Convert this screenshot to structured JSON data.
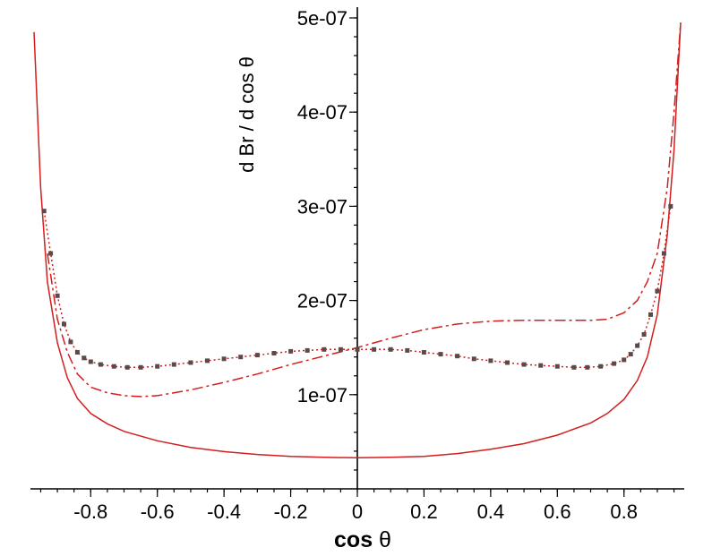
{
  "chart_data": {
    "type": "line",
    "xlabel": "cos θ",
    "xlabel_parts": {
      "bold": "cos",
      "rest": " θ"
    },
    "ylabel": "d Br / d cos θ",
    "xlim": [
      -0.97,
      0.97
    ],
    "ylim": [
      0.0,
      5e-07
    ],
    "x_ticks": [
      -0.8,
      -0.6,
      -0.4,
      -0.2,
      0,
      0.2,
      0.4,
      0.6,
      0.8
    ],
    "x_tick_labels": [
      "-0.8",
      "-0.6",
      "-0.4",
      "-0.2",
      "0",
      "0.2",
      "0.4",
      "0.6",
      "0.8"
    ],
    "y_ticks": [
      1e-07,
      2e-07,
      3e-07,
      4e-07,
      5e-07
    ],
    "y_tick_labels": [
      "1e-07",
      "2e-07",
      "3e-07",
      "4e-07",
      "5e-07"
    ],
    "colors": {
      "solid": "#d21e1e",
      "dashed": "#d21e1e",
      "dotted": "#d21e1e",
      "markers": "#5a4a4a",
      "axes": "#000000"
    },
    "series": [
      {
        "style": "solid",
        "x": [
          -0.97,
          -0.95,
          -0.93,
          -0.9,
          -0.87,
          -0.84,
          -0.8,
          -0.75,
          -0.7,
          -0.6,
          -0.5,
          -0.4,
          -0.3,
          -0.2,
          -0.1,
          0.0,
          0.1,
          0.2,
          0.3,
          0.4,
          0.5,
          0.6,
          0.7,
          0.75,
          0.8,
          0.84,
          0.87,
          0.9,
          0.93,
          0.95,
          0.97
        ],
        "y": [
          4.85e-07,
          3.2e-07,
          2.2e-07,
          1.55e-07,
          1.18e-07,
          9.6e-08,
          8e-08,
          6.9e-08,
          6.1e-08,
          5.1e-08,
          4.4e-08,
          3.95e-08,
          3.65e-08,
          3.45e-08,
          3.35e-08,
          3.3e-08,
          3.35e-08,
          3.45e-08,
          3.75e-08,
          4.2e-08,
          4.8e-08,
          5.7e-08,
          7e-08,
          8e-08,
          9.5e-08,
          1.15e-07,
          1.4e-07,
          1.85e-07,
          2.7e-07,
          3.6e-07,
          4.95e-07
        ]
      },
      {
        "style": "dashed",
        "x": [
          -0.93,
          -0.9,
          -0.87,
          -0.84,
          -0.8,
          -0.75,
          -0.7,
          -0.65,
          -0.6,
          -0.5,
          -0.4,
          -0.3,
          -0.2,
          -0.1,
          0.0,
          0.1,
          0.2,
          0.3,
          0.4,
          0.5,
          0.6,
          0.7,
          0.75,
          0.8,
          0.84,
          0.87,
          0.9,
          0.93,
          0.95,
          0.97
        ],
        "y": [
          2.5e-07,
          1.8e-07,
          1.45e-07,
          1.22e-07,
          1.08e-07,
          1.02e-07,
          9.9e-08,
          9.8e-08,
          9.9e-08,
          1.05e-07,
          1.13e-07,
          1.22e-07,
          1.32e-07,
          1.41e-07,
          1.5e-07,
          1.6e-07,
          1.69e-07,
          1.75e-07,
          1.78e-07,
          1.79e-07,
          1.79e-07,
          1.79e-07,
          1.8e-07,
          1.87e-07,
          2e-07,
          2.2e-07,
          2.5e-07,
          3.2e-07,
          4e-07,
          4.95e-07
        ]
      },
      {
        "style": "dotted-markers",
        "x": [
          -0.94,
          -0.92,
          -0.9,
          -0.88,
          -0.86,
          -0.84,
          -0.82,
          -0.8,
          -0.77,
          -0.73,
          -0.69,
          -0.65,
          -0.6,
          -0.55,
          -0.5,
          -0.45,
          -0.4,
          -0.35,
          -0.3,
          -0.25,
          -0.2,
          -0.15,
          -0.1,
          -0.05,
          0.0,
          0.05,
          0.1,
          0.15,
          0.2,
          0.25,
          0.3,
          0.35,
          0.4,
          0.45,
          0.5,
          0.55,
          0.6,
          0.65,
          0.69,
          0.73,
          0.77,
          0.8,
          0.82,
          0.84,
          0.86,
          0.88,
          0.9,
          0.92,
          0.94
        ],
        "y": [
          2.95e-07,
          2.5e-07,
          2.05e-07,
          1.75e-07,
          1.56e-07,
          1.45e-07,
          1.39e-07,
          1.35e-07,
          1.32e-07,
          1.3e-07,
          1.29e-07,
          1.29e-07,
          1.3e-07,
          1.32e-07,
          1.34e-07,
          1.36e-07,
          1.38e-07,
          1.4e-07,
          1.42e-07,
          1.44e-07,
          1.46e-07,
          1.47e-07,
          1.48e-07,
          1.48e-07,
          1.48e-07,
          1.48e-07,
          1.48e-07,
          1.47e-07,
          1.45e-07,
          1.43e-07,
          1.41e-07,
          1.38e-07,
          1.36e-07,
          1.34e-07,
          1.32e-07,
          1.31e-07,
          1.3e-07,
          1.29e-07,
          1.29e-07,
          1.3e-07,
          1.33e-07,
          1.37e-07,
          1.43e-07,
          1.52e-07,
          1.64e-07,
          1.85e-07,
          2.1e-07,
          2.5e-07,
          3e-07
        ]
      }
    ]
  }
}
